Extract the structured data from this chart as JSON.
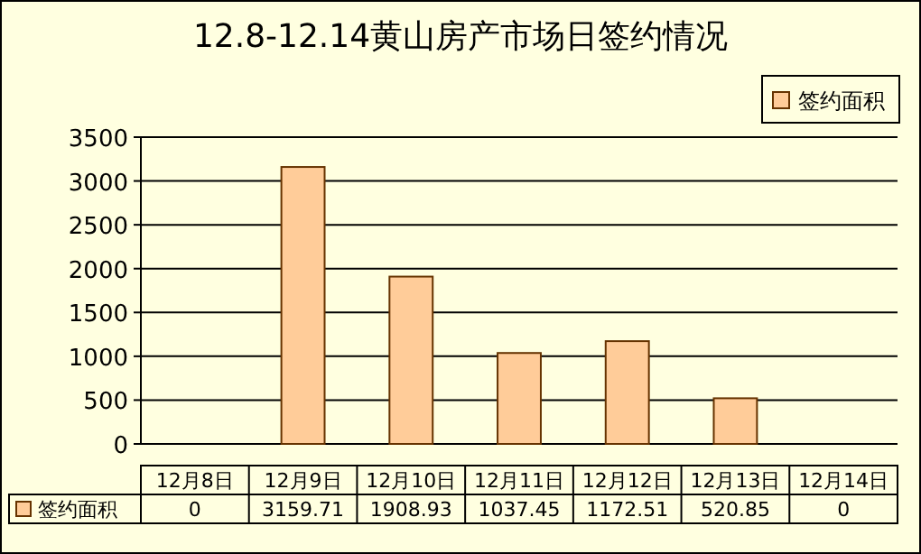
{
  "chart_data": {
    "type": "bar",
    "title": "12.8-12.14黄山房产市场日签约情况",
    "categories": [
      "12月8日",
      "12月9日",
      "12月10日",
      "12月11日",
      "12月12日",
      "12月13日",
      "12月14日"
    ],
    "series": [
      {
        "name": "签约面积",
        "color": "#ffcc99",
        "values": [
          0,
          3159.71,
          1908.93,
          1037.45,
          1172.51,
          520.85,
          0
        ]
      }
    ],
    "ylim": [
      0,
      3500
    ],
    "yticks": [
      0,
      500,
      1000,
      1500,
      2000,
      2500,
      3000,
      3500
    ],
    "grid": "y",
    "legend": "top right",
    "data_labels": true
  }
}
